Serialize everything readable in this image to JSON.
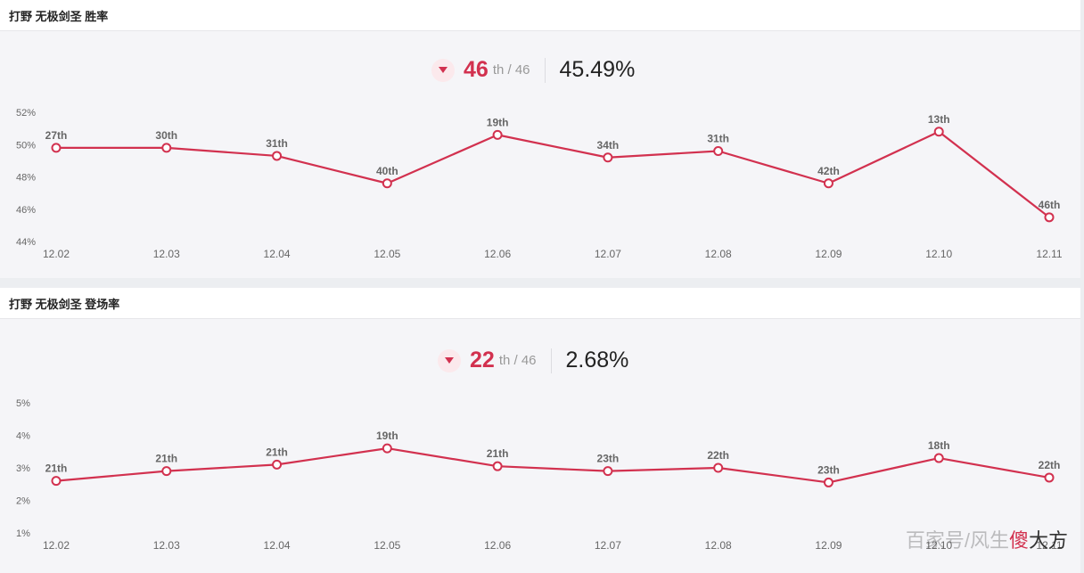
{
  "watermark": {
    "faded": "百家号/风生",
    "mark": "傻",
    "tail": "大方"
  },
  "colors": {
    "accent": "#d2314f",
    "point_fill": "#ffffff",
    "axis_text": "#666666"
  },
  "chart_data": [
    {
      "type": "line",
      "title": "打野 无极剑圣 胜率",
      "summary": {
        "rank": "46",
        "rank_suffix": "th / 46",
        "value": "45.49%",
        "trend": "down"
      },
      "categories": [
        "12.02",
        "12.03",
        "12.04",
        "12.05",
        "12.06",
        "12.07",
        "12.08",
        "12.09",
        "12.10",
        "12.11"
      ],
      "values": [
        49.8,
        49.8,
        49.3,
        47.6,
        50.6,
        49.2,
        49.6,
        47.6,
        50.8,
        45.5
      ],
      "point_labels": [
        "27th",
        "30th",
        "31th",
        "40th",
        "19th",
        "34th",
        "31th",
        "42th",
        "13th",
        "46th"
      ],
      "y_ticks": [
        44,
        46,
        48,
        50,
        52
      ],
      "y_tick_labels": [
        "44%",
        "46%",
        "48%",
        "50%",
        "52%"
      ],
      "ylim": [
        44,
        52
      ],
      "grid": false
    },
    {
      "type": "line",
      "title": "打野 无极剑圣 登场率",
      "summary": {
        "rank": "22",
        "rank_suffix": "th / 46",
        "value": "2.68%",
        "trend": "down"
      },
      "categories": [
        "12.02",
        "12.03",
        "12.04",
        "12.05",
        "12.06",
        "12.07",
        "12.08",
        "12.09",
        "12.10",
        "12.11"
      ],
      "values": [
        2.6,
        2.9,
        3.1,
        3.6,
        3.05,
        2.9,
        3.0,
        2.55,
        3.3,
        2.7
      ],
      "point_labels": [
        "21th",
        "21th",
        "21th",
        "19th",
        "21th",
        "23th",
        "22th",
        "23th",
        "18th",
        "22th"
      ],
      "y_ticks": [
        1,
        2,
        3,
        4,
        5
      ],
      "y_tick_labels": [
        "1%",
        "2%",
        "3%",
        "4%",
        "5%"
      ],
      "ylim": [
        1,
        5
      ],
      "grid": false
    }
  ]
}
